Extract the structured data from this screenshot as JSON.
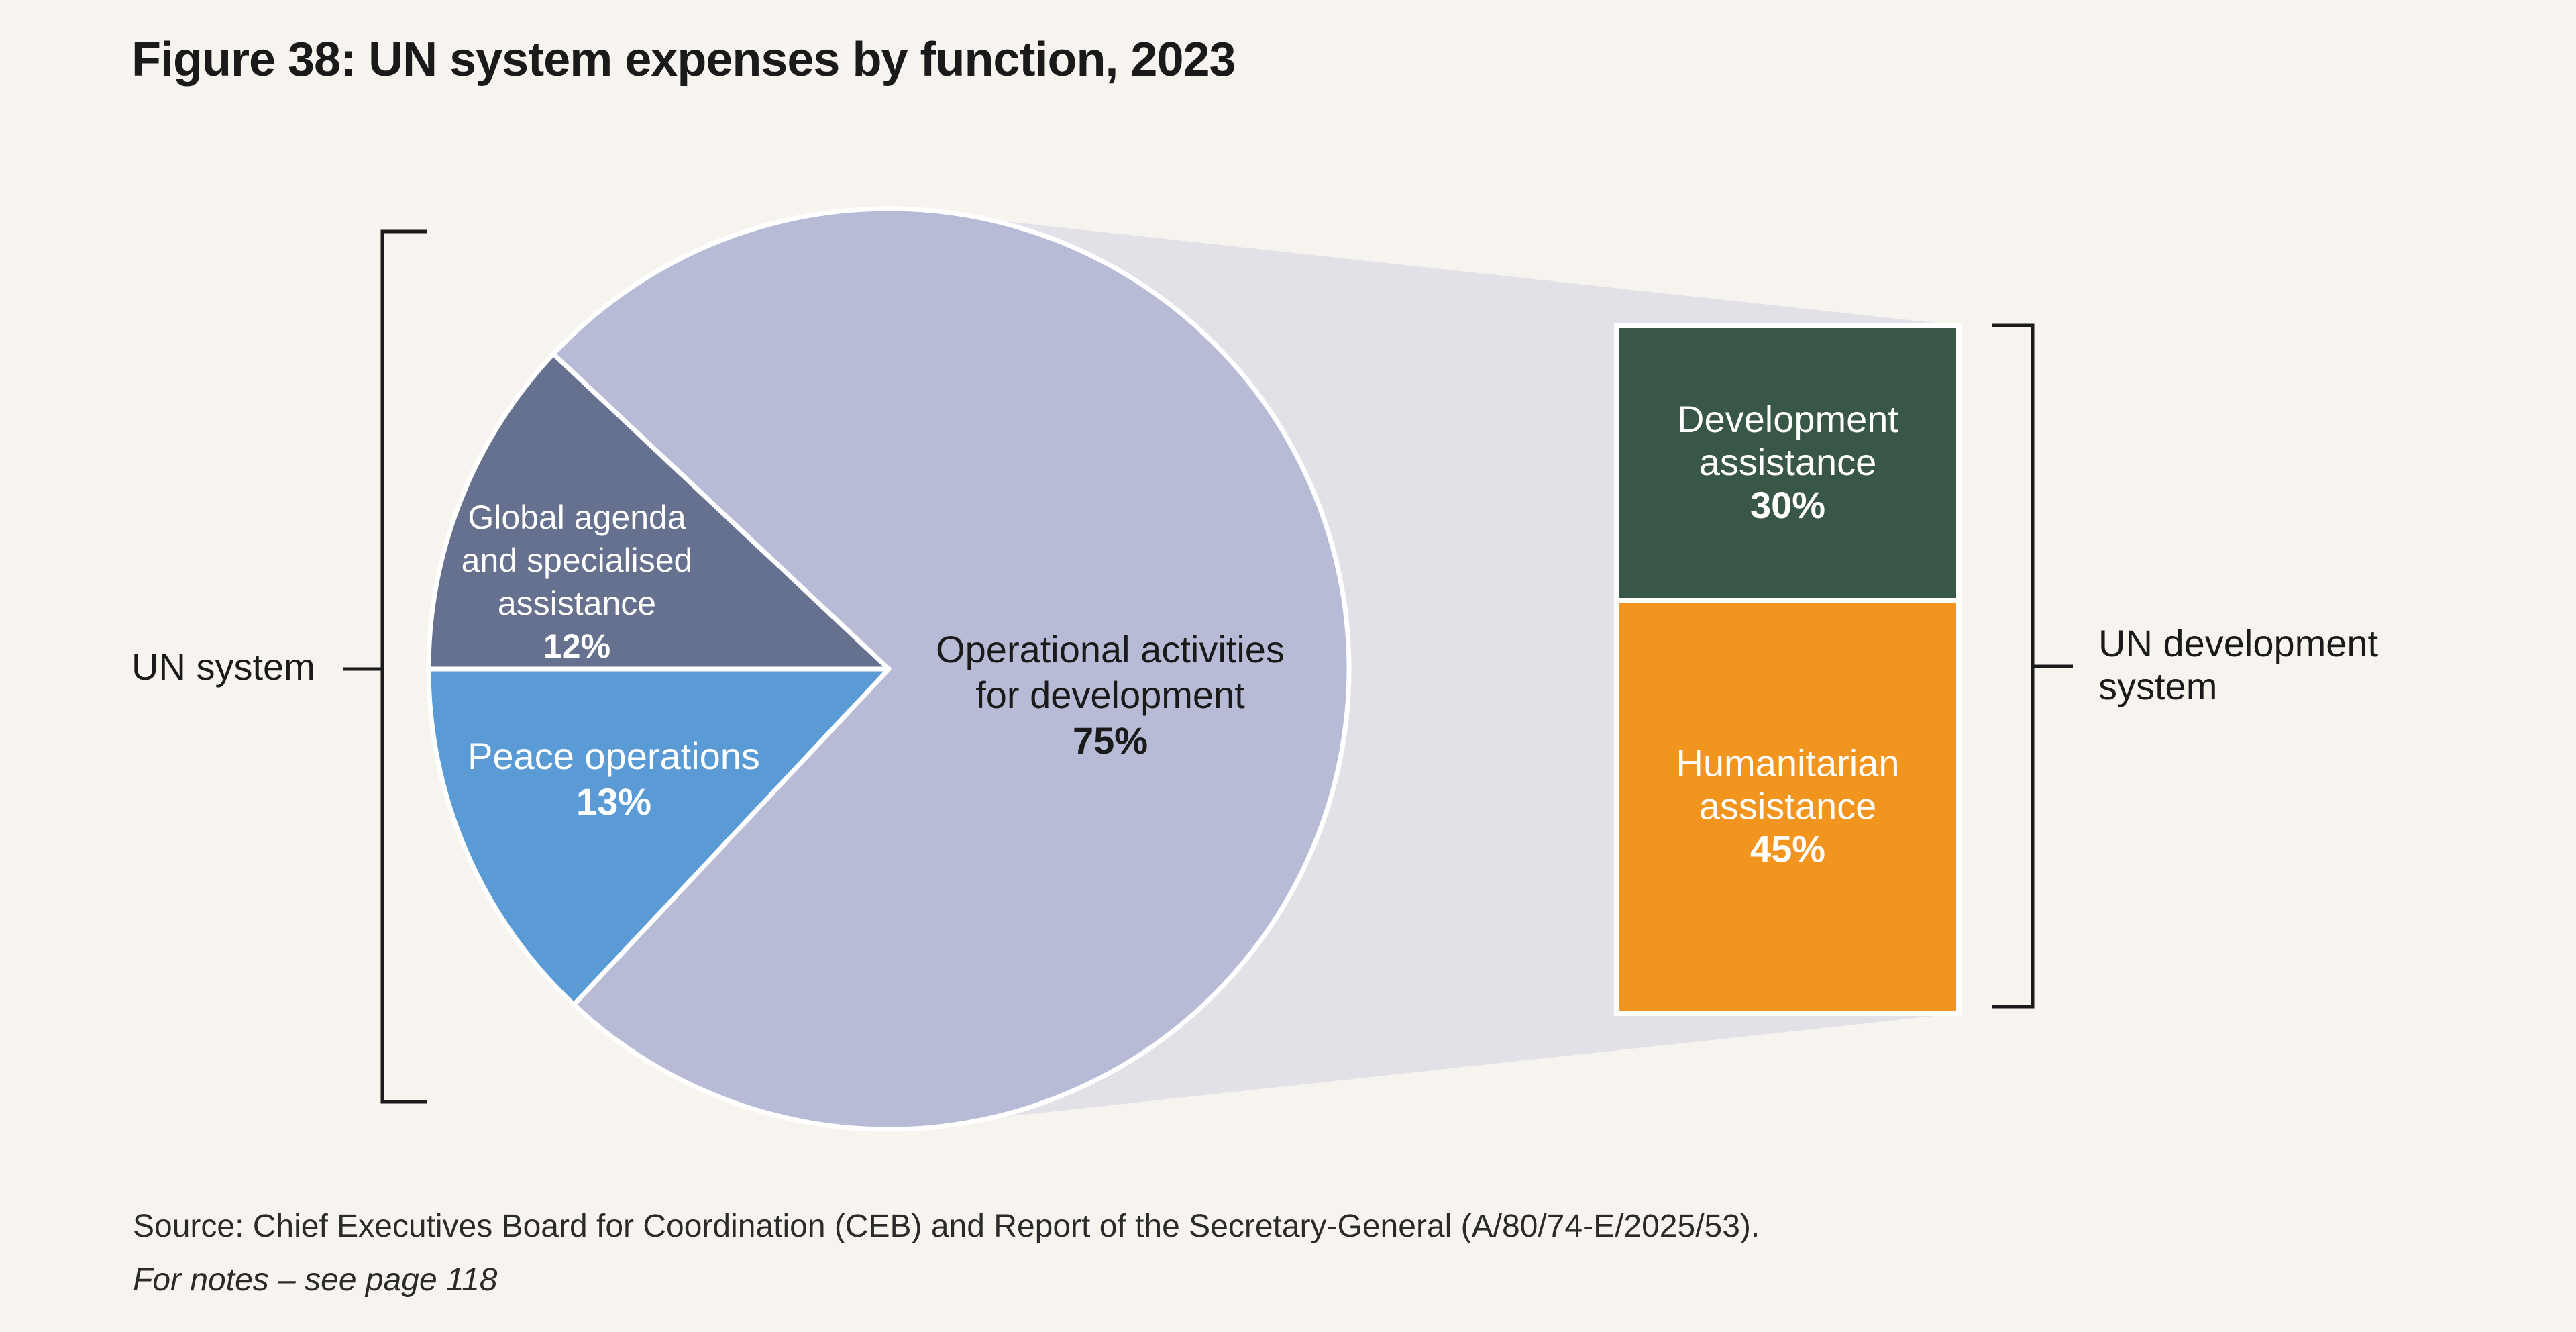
{
  "figure": {
    "title": "Figure 38: UN system expenses by function, 2023",
    "source": "Source: Chief Executives Board for Coordination (CEB) and Report of the Secretary-General (A/80/74-E/2025/53).",
    "notes": "For notes – see page 118"
  },
  "colors": {
    "background": "#f7f4f0",
    "operational": "#b7bbd6",
    "global_agenda": "#66708f",
    "peace_operations": "#5b9bd5",
    "development_assistance": "#385746",
    "humanitarian_assistance": "#f2951e",
    "connector": "#e2e1e7",
    "bracket": "#1a1a1a"
  },
  "chart_data": [
    {
      "type": "pie",
      "title": "",
      "bracket_label": "UN system",
      "slices": [
        {
          "key": "operational",
          "label_lines": [
            "Operational activities",
            "for development"
          ],
          "value": 75,
          "value_label": "75%",
          "color": "#b7bbd6"
        },
        {
          "key": "peace",
          "label_lines": [
            "Peace operations"
          ],
          "value": 13,
          "value_label": "13%",
          "color": "#5b9bd5"
        },
        {
          "key": "global",
          "label_lines": [
            "Global agenda",
            "and specialised",
            "assistance"
          ],
          "value": 12,
          "value_label": "12%",
          "color": "#66708f"
        }
      ]
    },
    {
      "type": "bar",
      "stacked": true,
      "title": "",
      "bracket_label_lines": [
        "UN development",
        "system"
      ],
      "segments": [
        {
          "key": "development",
          "label_lines": [
            "Development",
            "assistance"
          ],
          "value": 30,
          "value_label": "30%",
          "color": "#385746"
        },
        {
          "key": "humanitarian",
          "label_lines": [
            "Humanitarian",
            "assistance"
          ],
          "value": 45,
          "value_label": "45%",
          "color": "#f2951e"
        }
      ]
    }
  ]
}
